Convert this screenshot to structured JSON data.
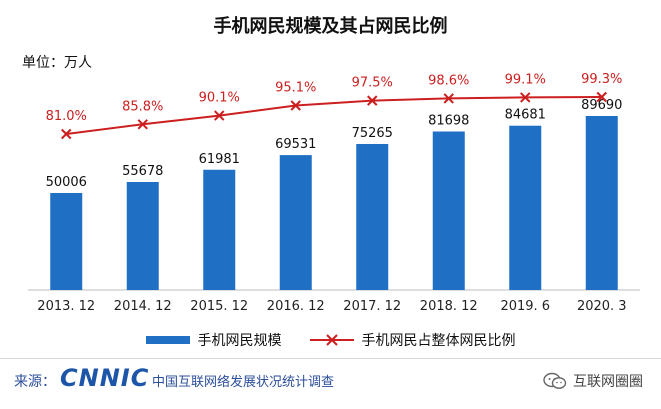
{
  "chart_data": {
    "type": "bar",
    "title": "手机网民规模及其占网民比例",
    "unit_label": "单位：万人",
    "categories": [
      "2013. 12",
      "2014. 12",
      "2015. 12",
      "2016. 12",
      "2017. 12",
      "2018. 12",
      "2019. 6",
      "2020. 3"
    ],
    "series": [
      {
        "name": "手机网民规模",
        "type": "bar",
        "values": [
          50006,
          55678,
          61981,
          69531,
          75265,
          81698,
          84681,
          89690
        ],
        "color": "#1f6fc5"
      },
      {
        "name": "手机网民占整体网民比例",
        "type": "line",
        "values": [
          81.0,
          85.8,
          90.1,
          95.1,
          97.5,
          98.6,
          99.1,
          99.3
        ],
        "value_labels": [
          "81.0%",
          "85.8%",
          "90.1%",
          "95.1%",
          "97.5%",
          "98.6%",
          "99.1%",
          "99.3%"
        ],
        "color": "#cc1f1f",
        "marker": "x"
      }
    ],
    "grid": false,
    "legend_position": "bottom"
  },
  "footer": {
    "source_label": "来源：",
    "logo_text": "CNNIC",
    "report_name": "中国互联网络发展状况统计调查",
    "brand": "互联网圈圈",
    "brand_icon": "wechat-icon"
  }
}
